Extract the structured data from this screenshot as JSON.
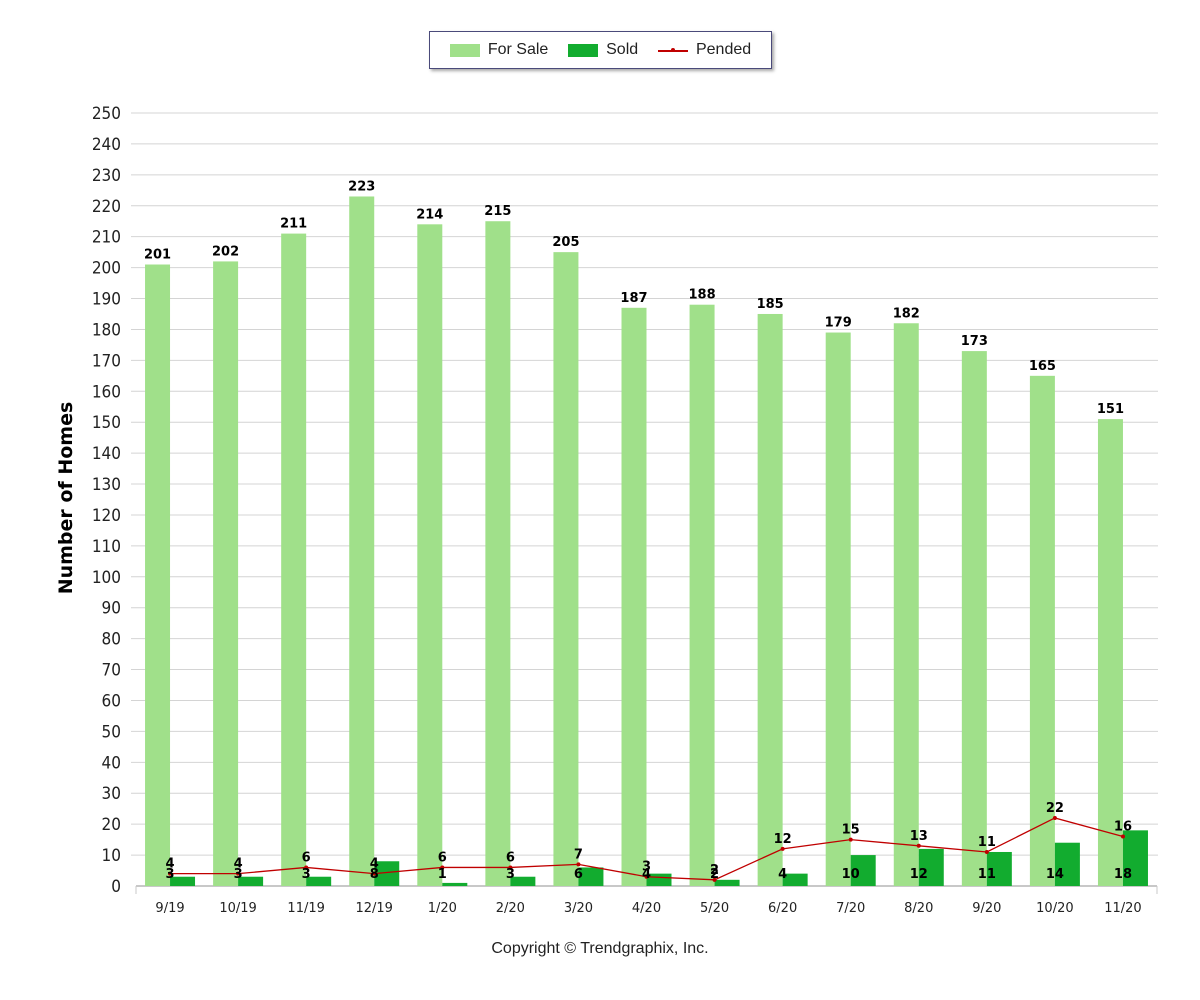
{
  "chart_data": {
    "type": "bar",
    "title": "",
    "xlabel": "",
    "ylabel": "Number of Homes",
    "ylim": [
      0,
      250
    ],
    "ytick_step": 10,
    "grid": true,
    "legend_position": "top-center",
    "categories": [
      "9/19",
      "10/19",
      "11/19",
      "12/19",
      "1/20",
      "2/20",
      "3/20",
      "4/20",
      "5/20",
      "6/20",
      "7/20",
      "8/20",
      "9/20",
      "10/20",
      "11/20"
    ],
    "series": [
      {
        "name": "For Sale",
        "kind": "bar",
        "color": "#a0e08a",
        "values": [
          201,
          202,
          211,
          223,
          214,
          215,
          205,
          187,
          188,
          185,
          179,
          182,
          173,
          165,
          151
        ]
      },
      {
        "name": "Sold",
        "kind": "bar",
        "color": "#12ac2f",
        "values": [
          3,
          3,
          3,
          8,
          1,
          3,
          6,
          4,
          2,
          4,
          10,
          12,
          11,
          14,
          18
        ]
      },
      {
        "name": "Pended",
        "kind": "line",
        "color": "#c00000",
        "values": [
          4,
          4,
          6,
          4,
          6,
          6,
          7,
          3,
          2,
          12,
          15,
          13,
          11,
          22,
          16
        ]
      }
    ]
  },
  "footer": {
    "copyright": "Copyright © Trendgraphix, Inc."
  }
}
